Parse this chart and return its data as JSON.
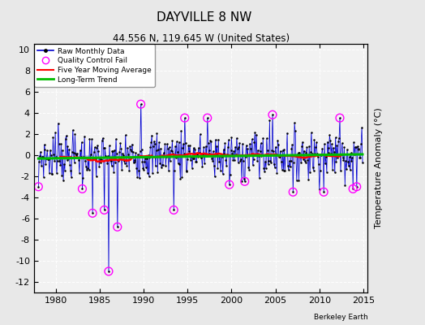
{
  "title": "DAYVILLE 8 NW",
  "subtitle": "44.556 N, 119.645 W (United States)",
  "ylabel": "Temperature Anomaly (°C)",
  "credit": "Berkeley Earth",
  "xlim": [
    1977.5,
    2015.5
  ],
  "ylim": [
    -13,
    10.5
  ],
  "yticks": [
    -12,
    -10,
    -8,
    -6,
    -4,
    -2,
    0,
    2,
    4,
    6,
    8,
    10
  ],
  "xticks": [
    1980,
    1985,
    1990,
    1995,
    2000,
    2005,
    2010,
    2015
  ],
  "bg_color": "#e8e8e8",
  "plot_bg": "#f0f0f0",
  "bar_color": "#8888ff",
  "line_color": "#0000cc",
  "dot_color": "#000000",
  "qc_color": "#ff00ff",
  "moving_avg_color": "#ff0000",
  "trend_color": "#00bb00",
  "grid_color": "#d0d0d0",
  "start_year": 1978,
  "end_year": 2014,
  "seed": 7
}
